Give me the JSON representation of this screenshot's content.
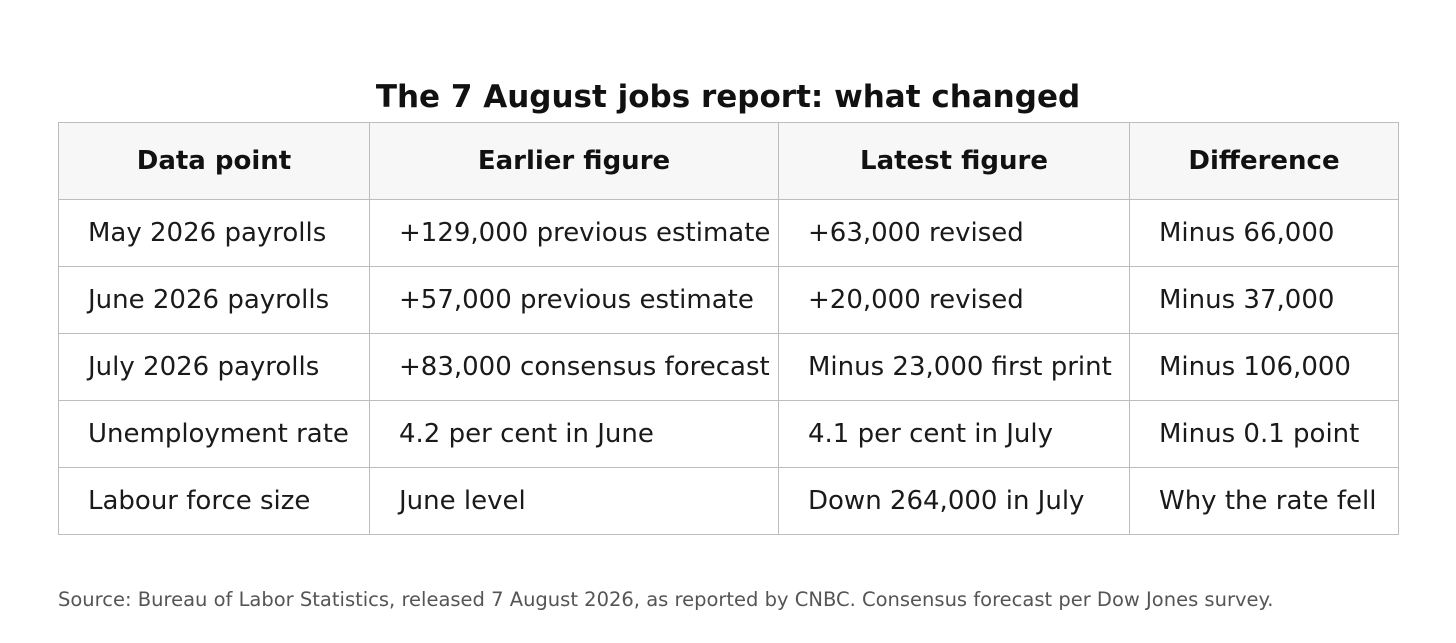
{
  "title": "The 7 August jobs report: what changed",
  "table": {
    "headers": [
      "Data point",
      "Earlier figure",
      "Latest figure",
      "Difference"
    ],
    "rows": [
      [
        "May 2026 payrolls",
        "+129,000 previous estimate",
        "+63,000 revised",
        "Minus 66,000"
      ],
      [
        "June 2026 payrolls",
        "+57,000 previous estimate",
        "+20,000 revised",
        "Minus 37,000"
      ],
      [
        "July 2026 payrolls",
        "+83,000 consensus forecast",
        "Minus 23,000 first print",
        "Minus 106,000"
      ],
      [
        "Unemployment rate",
        "4.2 per cent in June",
        "4.1 per cent in July",
        "Minus 0.1 point"
      ],
      [
        "Labour force size",
        "June level",
        "Down 264,000 in July",
        "Why the rate fell"
      ]
    ]
  },
  "source": "Source: Bureau of Labor Statistics, released 7 August 2026, as reported by CNBC. Consensus forecast per Dow Jones survey."
}
